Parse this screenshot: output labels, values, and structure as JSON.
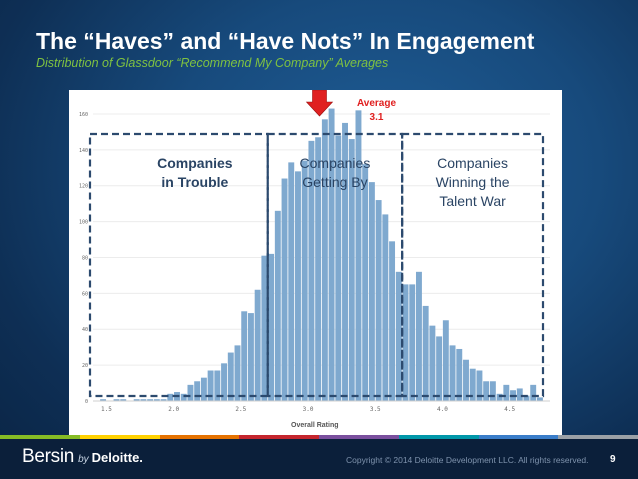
{
  "slide": {
    "title": "The “Haves” and “Have Nots” In Engagement",
    "subtitle": "Distribution of Glassdoor “Recommend My Company” Averages"
  },
  "chart_data": {
    "type": "bar",
    "title": "",
    "xlabel": "Overall Rating",
    "ylabel": "",
    "xlim": [
      1.4,
      4.8
    ],
    "ylim": [
      0,
      170
    ],
    "bin_width": 0.05,
    "x_ticks": [
      "1.5",
      "2.0",
      "2.5",
      "3.0",
      "3.5",
      "4.0",
      "4.5"
    ],
    "y_ticks": [
      "0",
      "20",
      "40",
      "60",
      "80",
      "100",
      "120",
      "140",
      "160"
    ],
    "grid": "horizontal",
    "bar_color": "#7fa9cf",
    "bins_start": 1.45,
    "values": [
      1,
      0,
      1,
      1,
      0,
      1,
      1,
      1,
      1,
      1,
      4,
      5,
      4,
      9,
      11,
      13,
      17,
      17,
      21,
      27,
      31,
      50,
      49,
      62,
      81,
      82,
      106,
      124,
      133,
      128,
      134,
      145,
      147,
      157,
      163,
      148,
      155,
      146,
      162,
      132,
      122,
      112,
      104,
      89,
      72,
      65,
      65,
      72,
      53,
      42,
      36,
      45,
      31,
      29,
      23,
      18,
      17,
      11,
      11,
      4,
      9,
      6,
      7,
      3,
      9,
      2
    ],
    "average": {
      "label": "Average",
      "value_label": "3.1",
      "value": 3.1,
      "color": "#e02020"
    },
    "regions": [
      {
        "label_line1": "Companies",
        "label_line2": "in Trouble",
        "label_line3": "",
        "bold": true,
        "x_from": 1.4,
        "x_to": 2.7
      },
      {
        "label_line1": "Companies",
        "label_line2": "Getting By",
        "label_line3": "",
        "bold": false,
        "x_from": 2.7,
        "x_to": 3.7
      },
      {
        "label_line1": "Companies",
        "label_line2": "Winning the",
        "label_line3": "Talent War",
        "bold": false,
        "x_from": 3.7,
        "x_to": 4.8
      }
    ],
    "region_border_color": "#2c4a6e"
  },
  "footer": {
    "brand_main": "Bersin",
    "brand_by": "by",
    "brand_company": "Deloitte.",
    "copyright": "Copyright © 2014 Deloitte Development LLC. All rights reserved.",
    "page_number": "9",
    "stripe_colors": [
      "#86bc25",
      "#ffd100",
      "#e57200",
      "#c4262e",
      "#7a4f9e",
      "#0097a9",
      "#3a7dc9",
      "#9aa0a6"
    ]
  }
}
